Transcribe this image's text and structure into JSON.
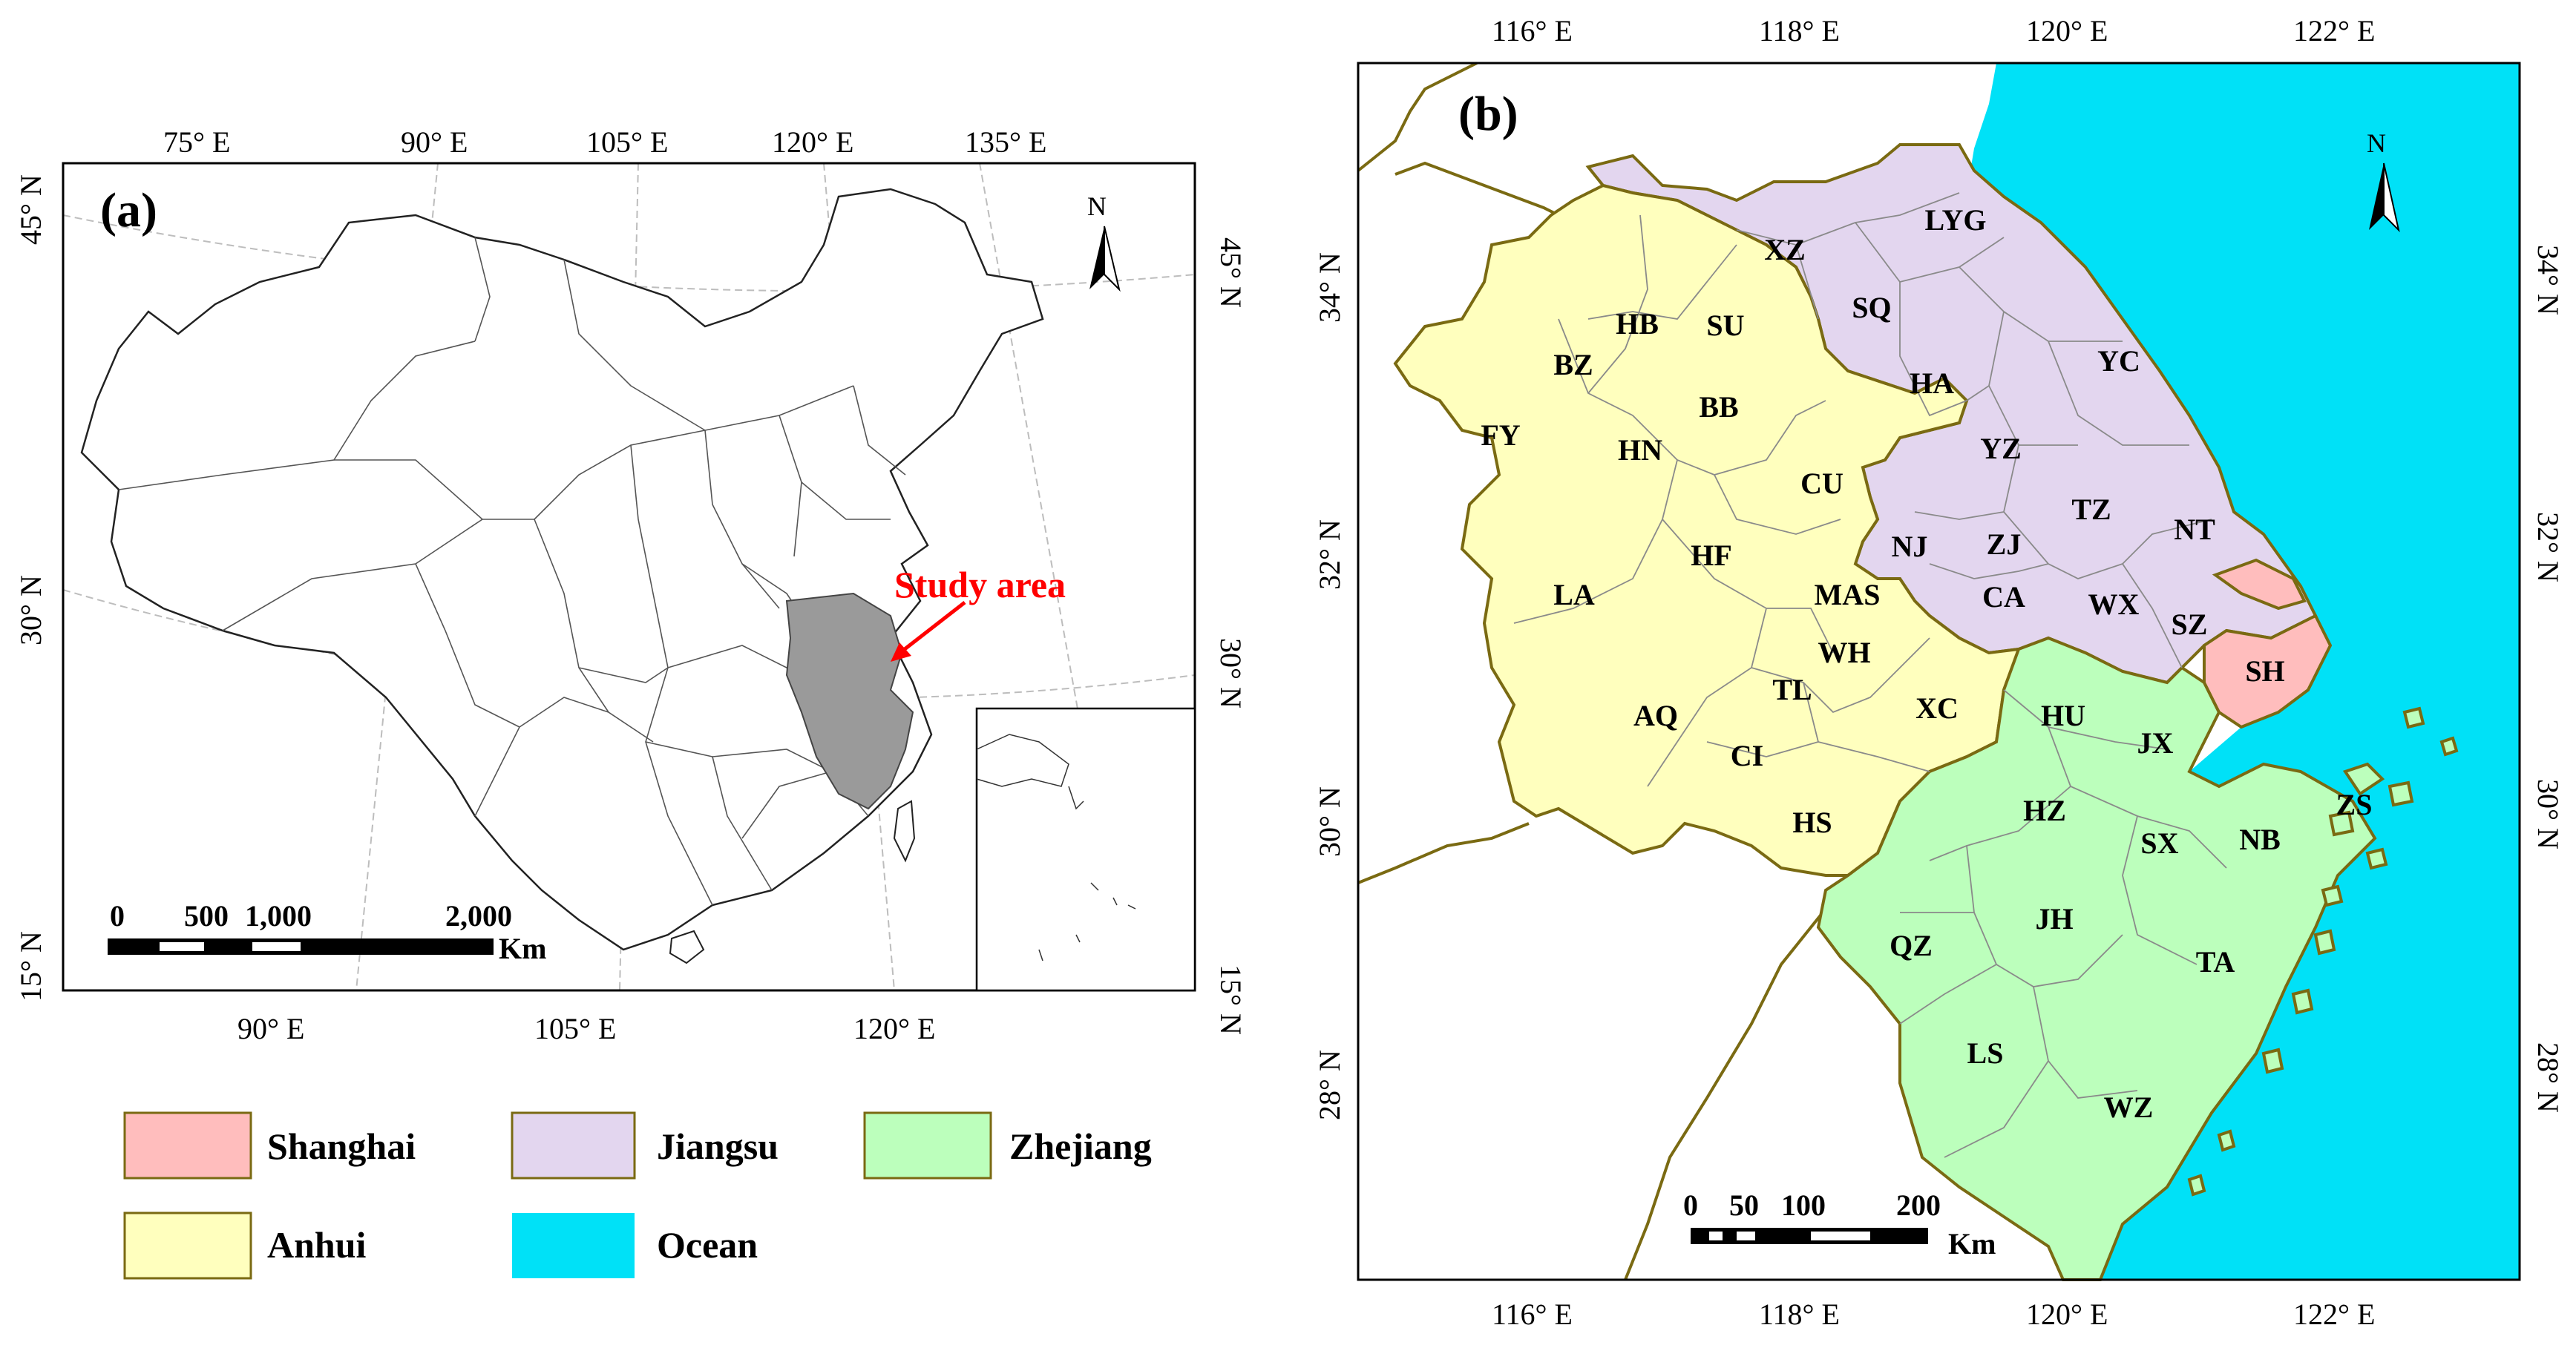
{
  "panel_a": {
    "label": "(a)",
    "top_ticks": [
      "75° E",
      "90° E",
      "105° E",
      "120° E",
      "135° E"
    ],
    "bottom_ticks": [
      "90° E",
      "105° E",
      "120° E"
    ],
    "left_ticks": [
      "45° N",
      "30° N",
      "15° N"
    ],
    "right_ticks": [
      "45° N",
      "30° N",
      "15° N"
    ],
    "annotation": "Study area",
    "north": "N",
    "scale": {
      "labels": [
        "0",
        "500",
        "1,000",
        "2,000"
      ],
      "unit": "Km"
    }
  },
  "panel_b": {
    "label": "(b)",
    "top_ticks": [
      "116° E",
      "118° E",
      "120° E",
      "122° E"
    ],
    "bottom_ticks": [
      "116° E",
      "118° E",
      "120° E",
      "122° E"
    ],
    "left_ticks": [
      "34° N",
      "32° N",
      "30° N",
      "28° N"
    ],
    "right_ticks": [
      "34° N",
      "32° N",
      "30° N",
      "28° N"
    ],
    "north": "N",
    "scale": {
      "labels": [
        "0",
        "50",
        "100",
        "200"
      ],
      "unit": "Km"
    },
    "cities": [
      "XZ",
      "LYG",
      "SQ",
      "HB",
      "SU",
      "BZ",
      "YC",
      "HA",
      "BB",
      "FY",
      "HN",
      "YZ",
      "CU",
      "TZ",
      "NT",
      "NJ",
      "ZJ",
      "HF",
      "CA",
      "WX",
      "SZ",
      "LA",
      "MAS",
      "WH",
      "SH",
      "TL",
      "AQ",
      "XC",
      "HU",
      "JX",
      "CI",
      "ZS",
      "HZ",
      "HS",
      "SX",
      "NB",
      "JH",
      "QZ",
      "TA",
      "LS",
      "WZ"
    ]
  },
  "legend": [
    {
      "label": "Shanghai",
      "color": "#ffbdbd"
    },
    {
      "label": "Jiangsu",
      "color": "#e3d6ef"
    },
    {
      "label": "Zhejiang",
      "color": "#bcffbc"
    },
    {
      "label": "Anhui",
      "color": "#ffffbe"
    },
    {
      "label": "Ocean",
      "color": "#00e1f7"
    }
  ],
  "colors": {
    "study_area": "#9a9a9a",
    "annotation": "#ff0000",
    "boundary": "#7a6a12"
  }
}
